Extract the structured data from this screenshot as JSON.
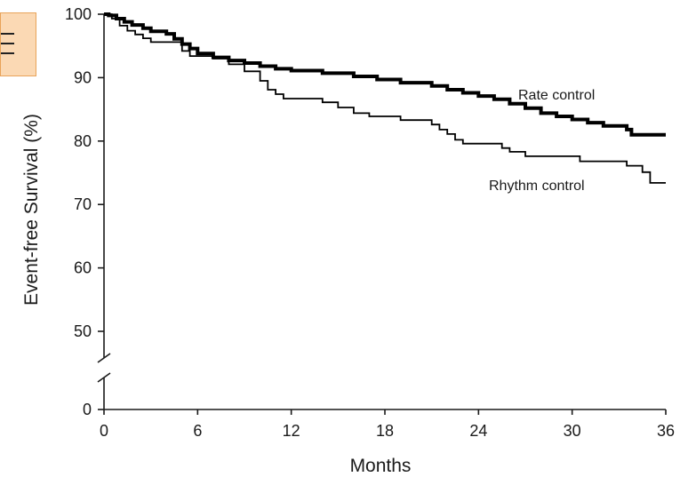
{
  "menu_button": {
    "icon": "hamburger-menu-icon",
    "background": "#fbd9b4",
    "border": "#e8a35a"
  },
  "chart_data": {
    "type": "line",
    "title": "",
    "xlabel": "Months",
    "ylabel": "Event-free Survival (%)",
    "xlim": [
      0,
      36
    ],
    "ylim": [
      0,
      100
    ],
    "axis_break": [
      0,
      45
    ],
    "x_ticks": [
      0,
      6,
      12,
      18,
      24,
      30,
      36
    ],
    "y_ticks": [
      0,
      50,
      60,
      70,
      80,
      90,
      100
    ],
    "grid": false,
    "legend": "inline labels",
    "series": [
      {
        "name": "Rate control",
        "color": "#000000",
        "points": [
          [
            0,
            100
          ],
          [
            0.3,
            99.8
          ],
          [
            0.8,
            99.3
          ],
          [
            1.3,
            98.8
          ],
          [
            1.8,
            98.3
          ],
          [
            2.5,
            97.8
          ],
          [
            3,
            97.3
          ],
          [
            4,
            96.9
          ],
          [
            4.5,
            96.1
          ],
          [
            5,
            95.3
          ],
          [
            5.5,
            94.6
          ],
          [
            6,
            93.8
          ],
          [
            7,
            93.2
          ],
          [
            8,
            92.7
          ],
          [
            9,
            92.3
          ],
          [
            10,
            91.8
          ],
          [
            11,
            91.4
          ],
          [
            12,
            91.1
          ],
          [
            14,
            90.7
          ],
          [
            16,
            90.2
          ],
          [
            17.5,
            89.7
          ],
          [
            19,
            89.2
          ],
          [
            21,
            88.7
          ],
          [
            22,
            88.1
          ],
          [
            23,
            87.6
          ],
          [
            24,
            87.1
          ],
          [
            25,
            86.6
          ],
          [
            26,
            85.9
          ],
          [
            27,
            85.2
          ],
          [
            28,
            84.4
          ],
          [
            29,
            83.9
          ],
          [
            30,
            83.4
          ],
          [
            31,
            82.9
          ],
          [
            32,
            82.4
          ],
          [
            33.5,
            81.8
          ],
          [
            33.8,
            81
          ],
          [
            36,
            81
          ]
        ]
      },
      {
        "name": "Rhythm control",
        "color": "#000000",
        "points": [
          [
            0,
            100
          ],
          [
            0.5,
            99.3
          ],
          [
            1,
            98.2
          ],
          [
            1.5,
            97.4
          ],
          [
            2,
            96.8
          ],
          [
            2.5,
            96.2
          ],
          [
            3,
            95.6
          ],
          [
            4.5,
            95.6
          ],
          [
            5,
            94.2
          ],
          [
            5.5,
            93.4
          ],
          [
            7,
            93
          ],
          [
            8,
            92.1
          ],
          [
            9,
            91
          ],
          [
            10,
            89.5
          ],
          [
            10.5,
            88.1
          ],
          [
            11,
            87.4
          ],
          [
            11.5,
            86.7
          ],
          [
            14,
            86.1
          ],
          [
            15,
            85.3
          ],
          [
            16,
            84.4
          ],
          [
            17,
            83.9
          ],
          [
            19,
            83.3
          ],
          [
            21,
            82.6
          ],
          [
            21.5,
            81.8
          ],
          [
            22,
            81.1
          ],
          [
            22.5,
            80.2
          ],
          [
            23,
            79.6
          ],
          [
            25,
            79.6
          ],
          [
            25.5,
            78.9
          ],
          [
            26,
            78.3
          ],
          [
            27,
            77.6
          ],
          [
            30,
            77.6
          ],
          [
            30.5,
            76.8
          ],
          [
            33,
            76.8
          ],
          [
            33.5,
            76.1
          ],
          [
            34.5,
            75.1
          ],
          [
            35,
            73.4
          ],
          [
            36,
            73.4
          ]
        ]
      }
    ]
  }
}
